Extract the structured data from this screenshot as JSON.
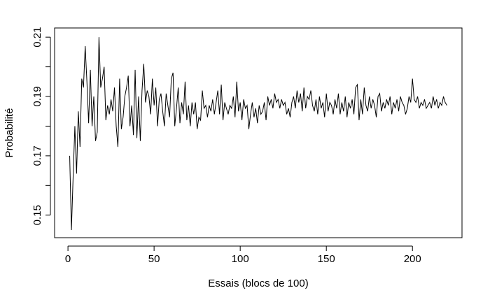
{
  "chart_data": {
    "type": "line",
    "xlabel": "Essais (blocs de 100)",
    "ylabel": "Probabilité",
    "x": [
      1,
      2,
      3,
      4,
      5,
      6,
      7,
      8,
      9,
      10,
      11,
      12,
      13,
      14,
      15,
      16,
      17,
      18,
      19,
      20,
      21,
      22,
      23,
      24,
      25,
      26,
      27,
      28,
      29,
      30,
      31,
      32,
      33,
      34,
      35,
      36,
      37,
      38,
      39,
      40,
      41,
      42,
      43,
      44,
      45,
      46,
      47,
      48,
      49,
      50,
      51,
      52,
      53,
      54,
      55,
      56,
      57,
      58,
      59,
      60,
      61,
      62,
      63,
      64,
      65,
      66,
      67,
      68,
      69,
      70,
      71,
      72,
      73,
      74,
      75,
      76,
      77,
      78,
      79,
      80,
      81,
      82,
      83,
      84,
      85,
      86,
      87,
      88,
      89,
      90,
      91,
      92,
      93,
      94,
      95,
      96,
      97,
      98,
      99,
      100,
      101,
      102,
      103,
      104,
      105,
      106,
      107,
      108,
      109,
      110,
      111,
      112,
      113,
      114,
      115,
      116,
      117,
      118,
      119,
      120,
      121,
      122,
      123,
      124,
      125,
      126,
      127,
      128,
      129,
      130,
      131,
      132,
      133,
      134,
      135,
      136,
      137,
      138,
      139,
      140,
      141,
      142,
      143,
      144,
      145,
      146,
      147,
      148,
      149,
      150,
      151,
      152,
      153,
      154,
      155,
      156,
      157,
      158,
      159,
      160,
      161,
      162,
      163,
      164,
      165,
      166,
      167,
      168,
      169,
      170,
      171,
      172,
      173,
      174,
      175,
      176,
      177,
      178,
      179,
      180,
      181,
      182,
      183,
      184,
      185,
      186,
      187,
      188,
      189,
      190,
      191,
      192,
      193,
      194,
      195,
      196,
      197,
      198,
      199,
      200,
      201,
      202,
      203,
      204,
      205,
      206,
      207,
      208,
      209,
      210,
      211,
      212,
      213,
      214,
      215,
      216,
      217,
      218,
      219,
      220
    ],
    "series": [
      {
        "color": "#000000",
        "values": [
          0.17,
          0.145,
          0.163,
          0.18,
          0.164,
          0.185,
          0.173,
          0.196,
          0.193,
          0.207,
          0.195,
          0.181,
          0.199,
          0.18,
          0.19,
          0.175,
          0.178,
          0.21,
          0.193,
          0.196,
          0.2,
          0.182,
          0.187,
          0.184,
          0.189,
          0.185,
          0.193,
          0.18,
          0.173,
          0.196,
          0.179,
          0.183,
          0.19,
          0.193,
          0.197,
          0.18,
          0.187,
          0.177,
          0.199,
          0.176,
          0.19,
          0.175,
          0.192,
          0.201,
          0.188,
          0.192,
          0.19,
          0.184,
          0.196,
          0.187,
          0.193,
          0.18,
          0.189,
          0.191,
          0.185,
          0.18,
          0.191,
          0.187,
          0.183,
          0.196,
          0.198,
          0.18,
          0.186,
          0.193,
          0.181,
          0.188,
          0.184,
          0.195,
          0.182,
          0.187,
          0.18,
          0.188,
          0.184,
          0.188,
          0.179,
          0.183,
          0.182,
          0.192,
          0.186,
          0.187,
          0.183,
          0.187,
          0.185,
          0.189,
          0.184,
          0.188,
          0.192,
          0.184,
          0.194,
          0.182,
          0.188,
          0.186,
          0.184,
          0.187,
          0.186,
          0.19,
          0.183,
          0.195,
          0.185,
          0.188,
          0.182,
          0.189,
          0.186,
          0.187,
          0.179,
          0.184,
          0.188,
          0.183,
          0.186,
          0.181,
          0.187,
          0.184,
          0.185,
          0.188,
          0.182,
          0.19,
          0.187,
          0.189,
          0.186,
          0.191,
          0.188,
          0.189,
          0.186,
          0.189,
          0.187,
          0.188,
          0.184,
          0.186,
          0.183,
          0.188,
          0.19,
          0.186,
          0.192,
          0.188,
          0.191,
          0.185,
          0.193,
          0.186,
          0.19,
          0.189,
          0.192,
          0.187,
          0.185,
          0.189,
          0.184,
          0.19,
          0.186,
          0.188,
          0.183,
          0.191,
          0.185,
          0.188,
          0.187,
          0.184,
          0.189,
          0.186,
          0.191,
          0.184,
          0.188,
          0.185,
          0.19,
          0.183,
          0.188,
          0.186,
          0.189,
          0.184,
          0.193,
          0.194,
          0.182,
          0.189,
          0.184,
          0.193,
          0.187,
          0.185,
          0.19,
          0.186,
          0.189,
          0.187,
          0.183,
          0.19,
          0.191,
          0.185,
          0.188,
          0.186,
          0.189,
          0.187,
          0.19,
          0.184,
          0.188,
          0.186,
          0.189,
          0.185,
          0.19,
          0.188,
          0.187,
          0.184,
          0.186,
          0.19,
          0.188,
          0.196,
          0.189,
          0.188,
          0.19,
          0.186,
          0.188,
          0.187,
          0.189,
          0.186,
          0.187,
          0.188,
          0.186,
          0.19,
          0.187,
          0.189,
          0.186,
          0.188,
          0.187,
          0.19,
          0.188,
          0.187
        ]
      }
    ],
    "xlim": [
      -7.76,
      228.76
    ],
    "xticks": [
      0,
      50,
      100,
      150,
      200
    ],
    "ylim": [
      0.1424,
      0.2131
    ],
    "yticks": [
      0.15,
      0.17,
      0.19,
      0.21
    ],
    "yminor_ticks": [
      0.16,
      0.18,
      0.2
    ]
  }
}
